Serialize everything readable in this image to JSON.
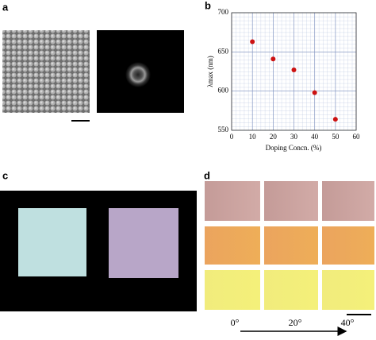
{
  "panel_labels": [
    "a",
    "b",
    "c",
    "d"
  ],
  "chart_data": {
    "type": "scatter",
    "xlabel": "Doping Concn. (%)",
    "ylabel": "λmax (nm)",
    "x": [
      10,
      20,
      30,
      40,
      50
    ],
    "values": [
      663,
      641,
      627,
      598,
      564
    ],
    "color": "#cc1111",
    "xlim": [
      0,
      60
    ],
    "xticks": [
      0,
      10,
      20,
      30,
      40,
      50,
      60
    ],
    "ylim": [
      550,
      700
    ],
    "yticks": [
      550,
      600,
      650,
      700
    ],
    "grid": true
  },
  "angles": [
    "0°",
    "20°",
    "40°"
  ]
}
